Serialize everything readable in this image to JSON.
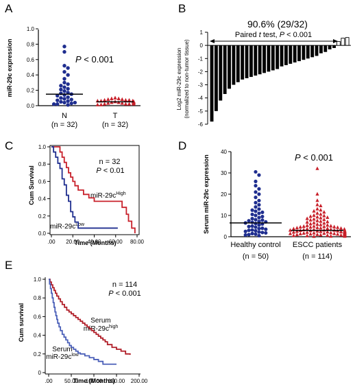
{
  "chart_data": [
    {
      "panel": "A",
      "type": "scatter",
      "ylabel": "miR-29c expression",
      "ylim": [
        0,
        1
      ],
      "yticks": [
        "0.0",
        "0.2",
        "0.4",
        "0.6",
        "0.8",
        "1.0"
      ],
      "annotation": "P < 0.001",
      "categories": [
        {
          "label": "N",
          "n_label": "(n = 32)",
          "color": "#1f2e8f",
          "marker": "circle",
          "median": 0.15,
          "values": [
            0.77,
            0.7,
            0.52,
            0.49,
            0.44,
            0.4,
            0.35,
            0.3,
            0.28,
            0.26,
            0.24,
            0.22,
            0.21,
            0.19,
            0.17,
            0.16,
            0.15,
            0.14,
            0.13,
            0.11,
            0.1,
            0.09,
            0.08,
            0.07,
            0.06,
            0.05,
            0.04,
            0.04,
            0.03,
            0.02,
            0.02,
            0.01
          ]
        },
        {
          "label": "T",
          "n_label": "(n = 32)",
          "color": "#c8202a",
          "marker": "triangle",
          "median": 0.05,
          "values": [
            0.1,
            0.09,
            0.09,
            0.08,
            0.08,
            0.07,
            0.07,
            0.07,
            0.06,
            0.06,
            0.06,
            0.05,
            0.05,
            0.05,
            0.05,
            0.05,
            0.04,
            0.04,
            0.04,
            0.04,
            0.04,
            0.03,
            0.03,
            0.03,
            0.03,
            0.03,
            0.02,
            0.02,
            0.02,
            0.02,
            0.01,
            0.01
          ]
        }
      ]
    },
    {
      "panel": "B",
      "type": "bar",
      "title": "90.6% (29/32)",
      "annotation": "Paired t test, P < 0.001",
      "ylabel_line1": "Log2 miR-29c expression",
      "ylabel_line2": "(normalized to non-tumor tissue)",
      "ylim": [
        -6,
        1
      ],
      "yticks": [
        "1",
        "0",
        "-1",
        "-2",
        "-3",
        "-4",
        "-5",
        "-6"
      ],
      "values": [
        -5.8,
        -5.0,
        -4.2,
        -3.7,
        -3.3,
        -3.0,
        -2.8,
        -2.6,
        -2.5,
        -2.4,
        -2.3,
        -2.2,
        -2.1,
        -2.0,
        -1.9,
        -1.8,
        -1.6,
        -1.5,
        -1.4,
        -1.3,
        -1.2,
        -1.1,
        -1.0,
        -0.9,
        -0.8,
        -0.6,
        -0.5,
        -0.3,
        -0.2,
        0.3,
        0.55,
        0.6
      ]
    },
    {
      "panel": "C",
      "type": "line",
      "ylabel": "Cum Survival",
      "xlabel": "Time (Months)",
      "xlim": [
        0,
        80
      ],
      "ylim": [
        0,
        1
      ],
      "xticks": [
        ".00",
        "20.00",
        "40.00",
        "60.00",
        "80.00"
      ],
      "yticks": [
        "0.0",
        "0.2",
        "0.4",
        "0.6",
        "0.8",
        "1.0"
      ],
      "annotation_n": "n = 32",
      "annotation_p": "P < 0.01",
      "series": [
        {
          "label_main": "miR-29c",
          "label_sup": "High",
          "color": "#c8202a",
          "x": [
            0,
            5,
            8,
            10,
            12,
            14,
            16,
            18,
            20,
            22,
            25,
            30,
            35,
            40,
            45,
            55,
            63,
            66,
            70,
            72,
            75,
            78
          ],
          "y": [
            1.0,
            1.0,
            0.94,
            0.88,
            0.82,
            0.76,
            0.7,
            0.65,
            0.6,
            0.55,
            0.5,
            0.45,
            0.41,
            0.37,
            0.37,
            0.37,
            0.37,
            0.3,
            0.22,
            0.14,
            0.06,
            0.0
          ]
        },
        {
          "label_main": "miR-29c",
          "label_sup": "Low",
          "color": "#1f2e8f",
          "x": [
            0,
            2,
            4,
            6,
            8,
            10,
            12,
            14,
            16,
            18,
            20,
            22,
            25,
            30,
            40,
            50,
            60,
            62
          ],
          "y": [
            1.0,
            0.94,
            0.88,
            0.81,
            0.75,
            0.63,
            0.56,
            0.44,
            0.37,
            0.25,
            0.19,
            0.13,
            0.06,
            0.06,
            0.06,
            0.06,
            0.06,
            0.06
          ]
        }
      ]
    },
    {
      "panel": "D",
      "type": "scatter",
      "ylabel": "Serum miR-29c expression",
      "ylim": [
        0,
        40
      ],
      "yticks": [
        "0",
        "10",
        "20",
        "30",
        "40"
      ],
      "annotation": "P < 0.001",
      "categories": [
        {
          "label": "Healthy control",
          "n_label": "(n = 50)",
          "color": "#1f2e8f",
          "marker": "circle",
          "median": 6.5,
          "values": [
            30.5,
            29.0,
            26.0,
            24.0,
            22.5,
            21.0,
            20.0,
            18.5,
            17.0,
            16.0,
            15.0,
            14.0,
            13.0,
            12.5,
            12.0,
            11.5,
            11.0,
            10.5,
            10.0,
            9.5,
            9.0,
            8.5,
            8.0,
            7.8,
            7.5,
            7.2,
            7.0,
            6.8,
            6.5,
            6.2,
            6.0,
            5.5,
            5.0,
            4.8,
            4.5,
            4.0,
            3.8,
            3.5,
            3.2,
            3.0,
            2.8,
            2.5,
            2.2,
            2.0,
            1.8,
            1.5,
            1.2,
            1.0,
            0.8,
            0.5
          ]
        },
        {
          "label": "ESCC patients",
          "n_label": "(n = 114)",
          "color": "#c8202a",
          "marker": "triangle",
          "median": 3.0,
          "values": [
            32.0,
            20.0,
            17.0,
            15.0,
            14.5,
            13.0,
            12.5,
            12.0,
            11.5,
            11.0,
            10.5,
            10.0,
            9.8,
            9.5,
            9.2,
            9.0,
            8.8,
            8.5,
            8.2,
            8.0,
            7.8,
            7.5,
            7.2,
            7.0,
            6.8,
            6.5,
            6.3,
            6.0,
            5.8,
            5.6,
            5.4,
            5.2,
            5.0,
            4.9,
            4.8,
            4.7,
            4.6,
            4.5,
            4.4,
            4.3,
            4.2,
            4.1,
            4.0,
            3.9,
            3.8,
            3.7,
            3.6,
            3.5,
            3.4,
            3.3,
            3.2,
            3.1,
            3.0,
            3.0,
            2.9,
            2.8,
            2.8,
            2.7,
            2.6,
            2.6,
            2.5,
            2.4,
            2.4,
            2.3,
            2.2,
            2.2,
            2.1,
            2.0,
            2.0,
            1.9,
            1.8,
            1.8,
            1.7,
            1.7,
            1.6,
            1.6,
            1.5,
            1.5,
            1.4,
            1.4,
            1.3,
            1.3,
            1.2,
            1.2,
            1.1,
            1.1,
            1.0,
            1.0,
            0.95,
            0.9,
            0.9,
            0.85,
            0.8,
            0.8,
            0.75,
            0.7,
            0.7,
            0.65,
            0.6,
            0.6,
            0.55,
            0.5,
            0.5,
            0.45,
            0.4,
            0.4,
            0.35,
            0.3,
            0.3,
            0.25,
            0.2,
            0.2,
            0.15,
            0.1
          ]
        }
      ]
    },
    {
      "panel": "E",
      "type": "line",
      "ylabel": "Cum survival",
      "xlabel": "Time (Months)",
      "xlim": [
        0,
        200
      ],
      "ylim": [
        0,
        1
      ],
      "xticks": [
        ".00",
        "50.00",
        "100.00",
        "150.00",
        "200.00"
      ],
      "yticks": [
        "0",
        "0.2",
        "0.4",
        "0.6",
        "0.8",
        "1.0"
      ],
      "annotation_n": "n = 114",
      "annotation_p": "P < 0.001",
      "series": [
        {
          "label_main": "Serum",
          "label_line2": "miR-29c",
          "label_sup": "high",
          "color": "#b01e28",
          "x": [
            0,
            3,
            6,
            9,
            12,
            15,
            18,
            22,
            26,
            30,
            35,
            40,
            45,
            50,
            55,
            60,
            65,
            70,
            75,
            80,
            85,
            90,
            95,
            100,
            105,
            110,
            115,
            120,
            125,
            130,
            140,
            150,
            160,
            170,
            180
          ],
          "y": [
            1.0,
            0.97,
            0.94,
            0.91,
            0.88,
            0.85,
            0.82,
            0.79,
            0.76,
            0.73,
            0.7,
            0.67,
            0.65,
            0.63,
            0.61,
            0.59,
            0.57,
            0.55,
            0.53,
            0.51,
            0.49,
            0.47,
            0.45,
            0.43,
            0.41,
            0.39,
            0.37,
            0.35,
            0.33,
            0.3,
            0.27,
            0.25,
            0.23,
            0.2,
            0.19
          ]
        },
        {
          "label_main": "Serum",
          "label_line2": "miR-29c",
          "label_sup": "low",
          "color": "#4a5fb8",
          "x": [
            0,
            2,
            4,
            6,
            8,
            10,
            12,
            14,
            16,
            18,
            20,
            23,
            26,
            30,
            34,
            38,
            42,
            46,
            50,
            55,
            60,
            65,
            70,
            80,
            90,
            100,
            110,
            120,
            130,
            150
          ],
          "y": [
            1.0,
            0.95,
            0.9,
            0.85,
            0.8,
            0.75,
            0.7,
            0.65,
            0.61,
            0.57,
            0.53,
            0.49,
            0.45,
            0.41,
            0.38,
            0.35,
            0.32,
            0.29,
            0.27,
            0.25,
            0.23,
            0.21,
            0.2,
            0.18,
            0.16,
            0.14,
            0.12,
            0.09,
            0.09,
            0.09
          ]
        }
      ]
    }
  ],
  "panels": {
    "A": "A",
    "B": "B",
    "C": "C",
    "D": "D",
    "E": "E"
  }
}
